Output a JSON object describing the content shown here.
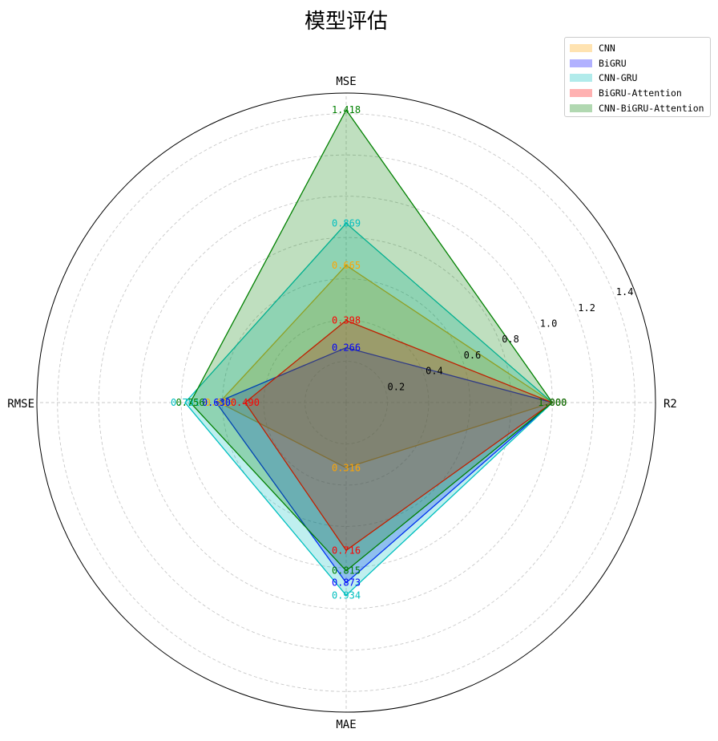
{
  "chart_data": {
    "type": "radar",
    "title": "模型评估",
    "axes": [
      "MSE",
      "R2",
      "MAE",
      "RMSE"
    ],
    "radial_ticks": [
      "0.2",
      "0.4",
      "0.6",
      "0.8",
      "1.0",
      "1.2",
      "1.4"
    ],
    "radial_tick_values": [
      0.2,
      0.4,
      0.6,
      0.8,
      1.0,
      1.2,
      1.4
    ],
    "rmax": 1.5,
    "grid": true,
    "legend_position": "top-right",
    "series": [
      {
        "name": "CNN",
        "color": "#ffa500",
        "values": [
          0.665,
          1.0,
          0.316,
          0.615
        ],
        "labels": [
          "0.665",
          "1.000",
          "0.316",
          "0.615"
        ]
      },
      {
        "name": "BiGRU",
        "color": "#0000ff",
        "values": [
          0.266,
          1.0,
          0.873,
          0.63
        ],
        "labels": [
          "0.266",
          "1.000",
          "0.873",
          "0.630"
        ]
      },
      {
        "name": "CNN-GRU",
        "color": "#00bfbf",
        "values": [
          0.869,
          1.0,
          0.934,
          0.781
        ],
        "labels": [
          "0.869",
          "1.000",
          "0.934",
          "0.781"
        ]
      },
      {
        "name": "BiGRU-Attention",
        "color": "#ff0000",
        "values": [
          0.398,
          1.0,
          0.716,
          0.49
        ],
        "labels": [
          "0.398",
          "1.000",
          "0.716",
          "0.490"
        ]
      },
      {
        "name": "CNN-BiGRU-Attention",
        "color": "#008000",
        "values": [
          1.418,
          1.0,
          0.815,
          0.756
        ],
        "labels": [
          "1.418",
          "1.000",
          "0.815",
          "0.756"
        ]
      }
    ]
  }
}
